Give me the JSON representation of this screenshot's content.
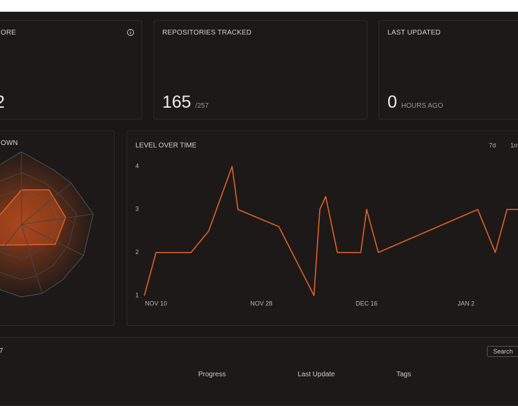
{
  "cards": [
    {
      "label": "ORE",
      "value": "2"
    },
    {
      "label": "REPOSITORIES TRACKED",
      "value": "165",
      "suffix": "/257"
    },
    {
      "label": "LAST UPDATED",
      "value": "0",
      "suffix": "HOURS AGO"
    }
  ],
  "breakdown": {
    "title": "OWN"
  },
  "chart_data": {
    "type": "line",
    "title": "LEVEL OVER TIME",
    "ranges": [
      "7d",
      "1m"
    ],
    "color": "#e0622a",
    "x": [
      -2,
      0,
      6,
      9,
      13,
      14,
      21,
      27,
      28,
      29,
      31,
      35,
      36,
      38,
      55,
      58,
      60,
      62
    ],
    "values": [
      1,
      2,
      2,
      2.5,
      4,
      3,
      2.6,
      1,
      3,
      3.3,
      2,
      2,
      3,
      2,
      3,
      2,
      3,
      3
    ],
    "xlim": [
      -2,
      62
    ],
    "xticks": [
      {
        "value": 0,
        "label": "NOV 10"
      },
      {
        "value": 18,
        "label": "NOV 28"
      },
      {
        "value": 36,
        "label": "DEC 16"
      },
      {
        "value": 53,
        "label": "JAN 2"
      }
    ],
    "ylim": [
      1,
      4
    ],
    "yticks": [
      1,
      2,
      3,
      4
    ]
  },
  "table": {
    "count": "7",
    "search": "Search",
    "columns": [
      "Progress",
      "Last Update",
      "Tags"
    ]
  }
}
